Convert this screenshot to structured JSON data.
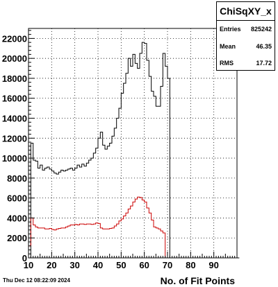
{
  "chart_data": {
    "type": "histogram",
    "title": "ChiSqXY_x",
    "xlabel": "No. of Fit Points",
    "ylabel": "",
    "xlim": [
      10,
      100
    ],
    "ylim": [
      0,
      23000
    ],
    "grid": true,
    "x_ticks": [
      10,
      20,
      30,
      40,
      50,
      60,
      70,
      80,
      90
    ],
    "y_ticks": [
      0,
      2000,
      4000,
      6000,
      8000,
      10000,
      12000,
      14000,
      16000,
      18000,
      20000,
      22000
    ],
    "bin_edges_start": 10,
    "bin_width": 1,
    "series": [
      {
        "color": "#000000",
        "values": [
          0,
          11500,
          9800,
          9700,
          9000,
          9300,
          8800,
          9000,
          9100,
          8900,
          8700,
          8500,
          8400,
          8600,
          8800,
          8700,
          8800,
          8900,
          9000,
          8800,
          9000,
          9300,
          9100,
          9400,
          9200,
          9500,
          9800,
          10000,
          10500,
          11000,
          12000,
          12600,
          11300,
          10900,
          11200,
          11500,
          12200,
          13000,
          14000,
          15000,
          16500,
          17500,
          18500,
          20000,
          19200,
          20400,
          19500,
          19000,
          20500,
          21600,
          21500,
          19800,
          18200,
          16700,
          16200,
          15200,
          15200,
          17200,
          20500,
          19200,
          18000,
          0,
          0,
          0,
          0,
          0,
          0,
          0,
          0,
          0,
          0,
          0,
          0,
          0,
          0,
          0,
          0,
          0,
          0,
          0,
          0,
          0,
          0,
          0,
          0,
          0,
          0,
          0,
          0,
          0,
          0
        ]
      },
      {
        "color": "#cc0000",
        "values": [
          1200,
          4000,
          3300,
          3100,
          3000,
          3000,
          3000,
          2900,
          2900,
          2950,
          2850,
          2800,
          2900,
          2950,
          3000,
          3000,
          3100,
          3200,
          3300,
          3300,
          3350,
          3300,
          3400,
          3400,
          3350,
          3400,
          3400,
          3350,
          3400,
          3500,
          3450,
          3000,
          2900,
          2900,
          2900,
          2950,
          3000,
          3200,
          3400,
          3700,
          3900,
          4200,
          4500,
          4900,
          5200,
          5600,
          5900,
          6100,
          6050,
          5800,
          5600,
          5000,
          4500,
          3800,
          3100,
          3000,
          2900,
          2700,
          2500,
          0,
          0,
          0,
          0,
          0,
          0,
          0,
          0,
          0,
          0,
          0,
          0,
          0,
          0,
          0,
          0,
          0,
          0,
          0,
          0,
          0,
          0,
          0,
          0,
          0,
          0,
          0,
          0,
          0,
          0,
          0
        ]
      }
    ]
  },
  "stats": {
    "title": "ChiSqXY_x",
    "entries_label": "Entries",
    "entries_value": "825242",
    "mean_label": "Mean",
    "mean_value": "46.35",
    "rms_label": "RMS",
    "rms_value": "17.72"
  },
  "footer": {
    "datestamp": "Thu Dec 12 08:22:09 2024"
  }
}
